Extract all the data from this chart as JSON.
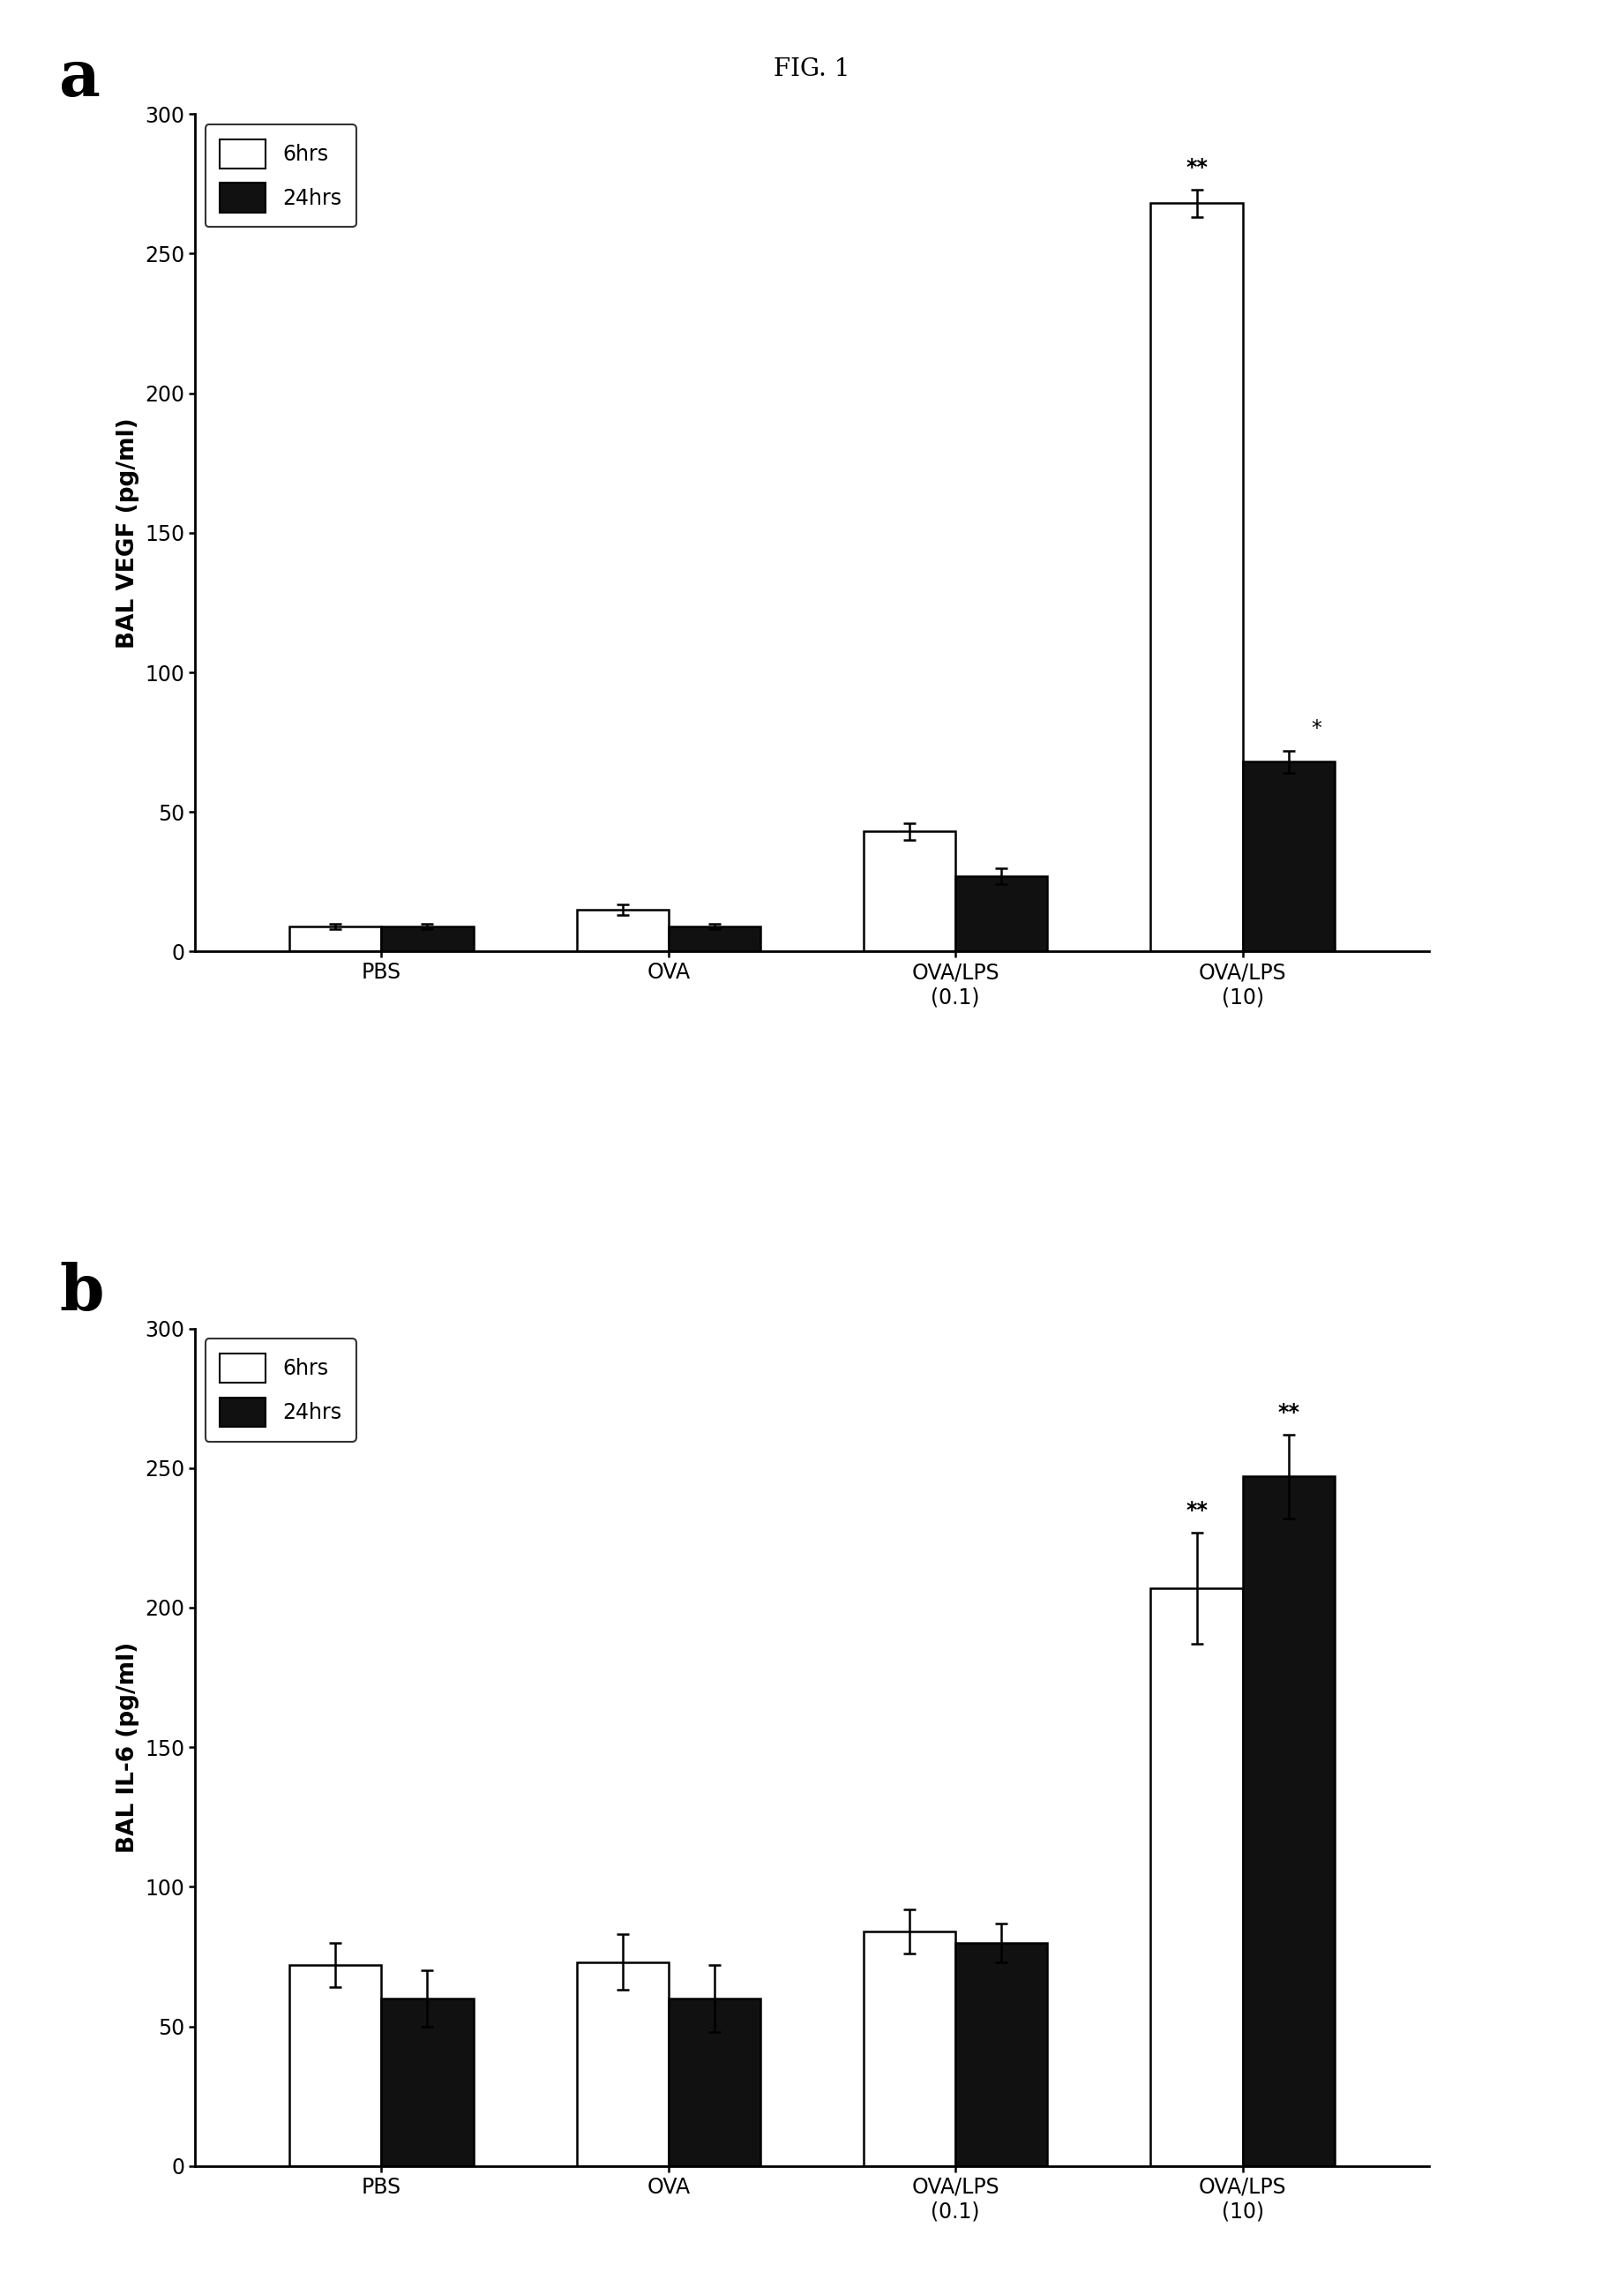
{
  "fig_title": "FIG. 1",
  "panel_a": {
    "ylabel": "BAL VEGF (pg/ml)",
    "ylim": [
      0,
      300
    ],
    "yticks": [
      0,
      50,
      100,
      150,
      200,
      250,
      300
    ],
    "categories": [
      "PBS",
      "OVA",
      "OVA/LPS\n(0.1)",
      "OVA/LPS\n(10)"
    ],
    "values_6hrs": [
      9,
      15,
      43,
      268
    ],
    "values_24hrs": [
      9,
      9,
      27,
      68
    ],
    "err_6hrs": [
      1,
      2,
      3,
      5
    ],
    "err_24hrs": [
      1,
      1,
      3,
      4
    ],
    "annotations_6hrs": [
      "",
      "",
      "",
      "**"
    ],
    "annotations_24hrs": [
      "",
      "",
      "",
      "*"
    ],
    "legend_6hrs": "6hrs",
    "legend_24hrs": "24hrs"
  },
  "panel_b": {
    "ylabel": "BAL IL-6 (pg/ml)",
    "ylim": [
      0,
      300
    ],
    "yticks": [
      0,
      50,
      100,
      150,
      200,
      250,
      300
    ],
    "categories": [
      "PBS",
      "OVA",
      "OVA/LPS\n(0.1)",
      "OVA/LPS\n(10)"
    ],
    "values_6hrs": [
      72,
      73,
      84,
      207
    ],
    "values_24hrs": [
      60,
      60,
      80,
      247
    ],
    "err_6hrs": [
      8,
      10,
      8,
      20
    ],
    "err_24hrs": [
      10,
      12,
      7,
      15
    ],
    "annotations_6hrs": [
      "",
      "",
      "",
      "**"
    ],
    "annotations_24hrs": [
      "",
      "",
      "",
      "**"
    ],
    "legend_6hrs": "6hrs",
    "legend_24hrs": "24hrs"
  },
  "bar_width": 0.32,
  "color_6hrs": "#ffffff",
  "color_24hrs": "#111111",
  "edge_color": "#000000",
  "fig_bg": "#ffffff",
  "panel_label_fontsize": 52,
  "title_fontsize": 20,
  "axis_label_fontsize": 19,
  "tick_fontsize": 17,
  "legend_fontsize": 17,
  "annotation_fontsize": 17
}
